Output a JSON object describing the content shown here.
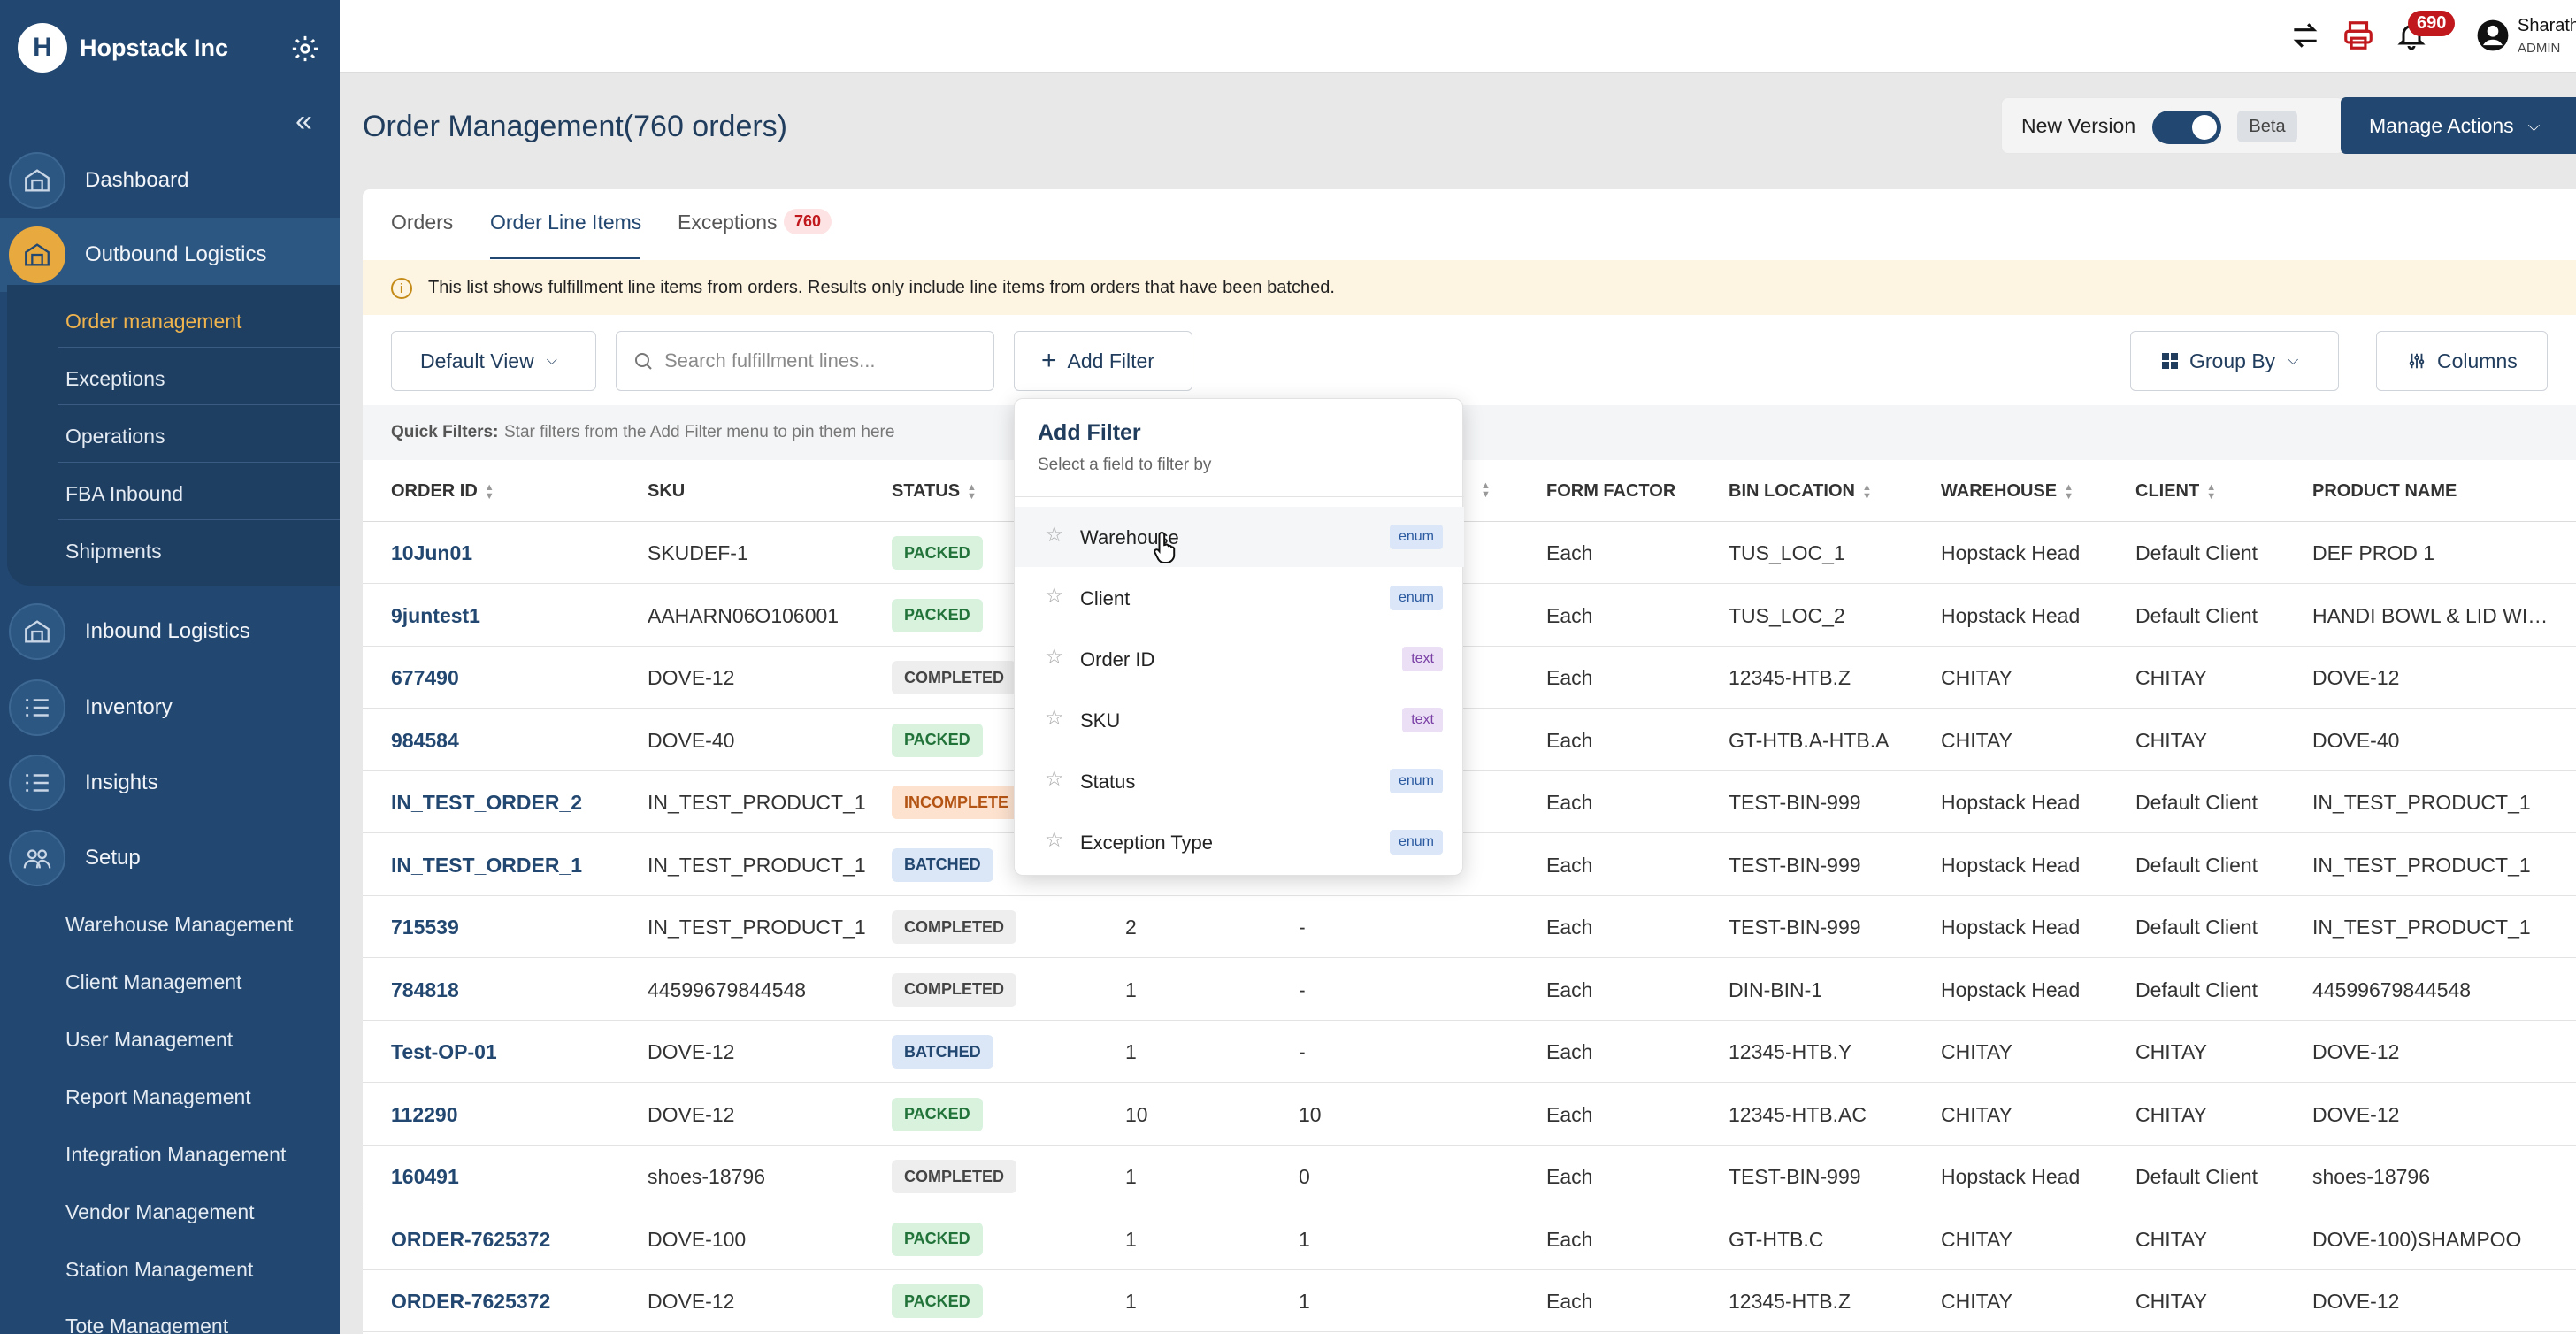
{
  "brand": {
    "name": "Hopstack Inc",
    "logo_letter": "H"
  },
  "sidebar": {
    "nav": [
      {
        "label": "Dashboard",
        "icon": "warehouse-icon"
      },
      {
        "label": "Outbound Logistics",
        "icon": "warehouse-icon"
      },
      {
        "label": "Inbound Logistics",
        "icon": "warehouse-icon"
      },
      {
        "label": "Inventory",
        "icon": "list-icon"
      },
      {
        "label": "Insights",
        "icon": "list-icon"
      },
      {
        "label": "Setup",
        "icon": "users-icon"
      }
    ],
    "outbound_sub": [
      "Order management",
      "Exceptions",
      "Operations",
      "FBA Inbound",
      "Shipments"
    ],
    "setup_sub": [
      "Warehouse Management",
      "Client Management",
      "User Management",
      "Report Management",
      "Integration Management",
      "Vendor Management",
      "Station Management",
      "Tote Management"
    ]
  },
  "topbar": {
    "notification_count": "690",
    "user_name": "Sharath",
    "user_role": "ADMIN"
  },
  "header": {
    "title": "Order Management(760 orders)",
    "new_version_label": "New Version",
    "beta_label": "Beta",
    "manage_actions_label": "Manage Actions"
  },
  "tabs": [
    {
      "label": "Orders"
    },
    {
      "label": "Order Line Items"
    },
    {
      "label": "Exceptions",
      "badge": "760"
    }
  ],
  "info_text": "This list shows fulfillment line items from orders. Results only include line items from orders that have been batched.",
  "toolbar": {
    "default_view": "Default View",
    "search_placeholder": "Search fulfillment lines...",
    "add_filter": "Add Filter",
    "group_by": "Group By",
    "columns": "Columns"
  },
  "quick_filters": {
    "label": "Quick Filters:",
    "text": "Star filters from the Add Filter menu to pin them here"
  },
  "table": {
    "headers": [
      "ORDER ID",
      "SKU",
      "STATUS",
      "FORM FACTOR",
      "BIN LOCATION",
      "WAREHOUSE",
      "CLIENT",
      "PRODUCT NAME"
    ],
    "rows": [
      {
        "order_id": "10Jun01",
        "sku": "SKUDEF-1",
        "status": "PACKED",
        "qty1": "",
        "qty2": "",
        "form": "Each",
        "bin": "TUS_LOC_1",
        "warehouse": "Hopstack Head",
        "client": "Default Client",
        "product": "DEF PROD 1"
      },
      {
        "order_id": "9juntest1",
        "sku": "AAHARN06O106001",
        "status": "PACKED",
        "qty1": "",
        "qty2": "",
        "form": "Each",
        "bin": "TUS_LOC_2",
        "warehouse": "Hopstack Head",
        "client": "Default Client",
        "product": "HANDI BOWL & LID WIT..."
      },
      {
        "order_id": "677490",
        "sku": "DOVE-12",
        "status": "COMPLETED",
        "qty1": "",
        "qty2": "",
        "form": "Each",
        "bin": "12345-HTB.Z",
        "warehouse": "CHITAY",
        "client": "CHITAY",
        "product": "DOVE-12"
      },
      {
        "order_id": "984584",
        "sku": "DOVE-40",
        "status": "PACKED",
        "qty1": "",
        "qty2": "",
        "form": "Each",
        "bin": "GT-HTB.A-HTB.A",
        "warehouse": "CHITAY",
        "client": "CHITAY",
        "product": "DOVE-40"
      },
      {
        "order_id": "IN_TEST_ORDER_2",
        "sku": "IN_TEST_PRODUCT_1",
        "status": "INCOMPLETE",
        "qty1": "",
        "qty2": "",
        "form": "Each",
        "bin": "TEST-BIN-999",
        "warehouse": "Hopstack Head",
        "client": "Default Client",
        "product": "IN_TEST_PRODUCT_1"
      },
      {
        "order_id": "IN_TEST_ORDER_1",
        "sku": "IN_TEST_PRODUCT_1",
        "status": "BATCHED",
        "qty1": "",
        "qty2": "",
        "form": "Each",
        "bin": "TEST-BIN-999",
        "warehouse": "Hopstack Head",
        "client": "Default Client",
        "product": "IN_TEST_PRODUCT_1"
      },
      {
        "order_id": "715539",
        "sku": "IN_TEST_PRODUCT_1",
        "status": "COMPLETED",
        "qty1": "2",
        "qty2": "-",
        "form": "Each",
        "bin": "TEST-BIN-999",
        "warehouse": "Hopstack Head",
        "client": "Default Client",
        "product": "IN_TEST_PRODUCT_1"
      },
      {
        "order_id": "784818",
        "sku": "44599679844548",
        "status": "COMPLETED",
        "qty1": "1",
        "qty2": "-",
        "form": "Each",
        "bin": "DIN-BIN-1",
        "warehouse": "Hopstack Head",
        "client": "Default Client",
        "product": "44599679844548"
      },
      {
        "order_id": "Test-OP-01",
        "sku": "DOVE-12",
        "status": "BATCHED",
        "qty1": "1",
        "qty2": "-",
        "form": "Each",
        "bin": "12345-HTB.Y",
        "warehouse": "CHITAY",
        "client": "CHITAY",
        "product": "DOVE-12"
      },
      {
        "order_id": "112290",
        "sku": "DOVE-12",
        "status": "PACKED",
        "qty1": "10",
        "qty2": "10",
        "form": "Each",
        "bin": "12345-HTB.AC",
        "warehouse": "CHITAY",
        "client": "CHITAY",
        "product": "DOVE-12"
      },
      {
        "order_id": "160491",
        "sku": "shoes-18796",
        "status": "COMPLETED",
        "qty1": "1",
        "qty2": "0",
        "form": "Each",
        "bin": "TEST-BIN-999",
        "warehouse": "Hopstack Head",
        "client": "Default Client",
        "product": "shoes-18796"
      },
      {
        "order_id": "ORDER-7625372",
        "sku": "DOVE-100",
        "status": "PACKED",
        "qty1": "1",
        "qty2": "1",
        "form": "Each",
        "bin": "GT-HTB.C",
        "warehouse": "CHITAY",
        "client": "CHITAY",
        "product": "DOVE-100)SHAMPOO"
      },
      {
        "order_id": "ORDER-7625372",
        "sku": "DOVE-12",
        "status": "PACKED",
        "qty1": "1",
        "qty2": "1",
        "form": "Each",
        "bin": "12345-HTB.Z",
        "warehouse": "CHITAY",
        "client": "CHITAY",
        "product": "DOVE-12"
      }
    ]
  },
  "add_filter_menu": {
    "title": "Add Filter",
    "subtitle": "Select a field to filter by",
    "items": [
      {
        "label": "Warehouse",
        "type": "enum"
      },
      {
        "label": "Client",
        "type": "enum"
      },
      {
        "label": "Order ID",
        "type": "text"
      },
      {
        "label": "SKU",
        "type": "text"
      },
      {
        "label": "Status",
        "type": "enum"
      },
      {
        "label": "Exception Type",
        "type": "enum"
      }
    ]
  },
  "colors": {
    "sidebar": "#224770",
    "accent": "#e8a93f",
    "primary": "#224770"
  }
}
